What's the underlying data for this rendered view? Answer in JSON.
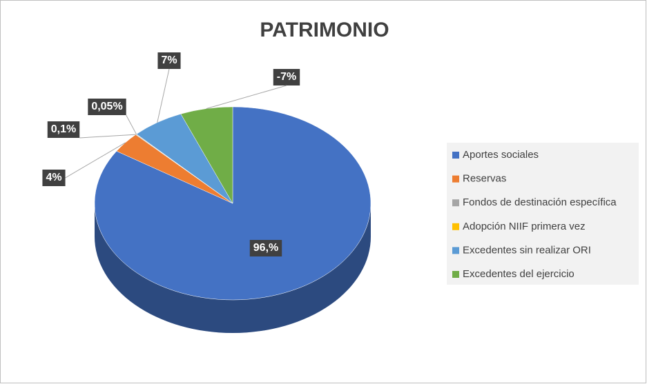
{
  "chart_data": {
    "type": "pie",
    "title": "PATRIMONIO",
    "categories": [
      "Aportes sociales",
      "Reservas",
      "Fondos de destinación específica",
      "Adopción NIIF primera vez",
      "Excedentes sin realizar ORI",
      "Excedentes del ejercicio"
    ],
    "values": [
      96,
      4,
      0.1,
      0.05,
      7,
      -7
    ],
    "value_labels": [
      "96,%",
      "4%",
      "0,1%",
      "0,05%",
      "7%",
      "-7%"
    ],
    "colors": [
      "#4472c4",
      "#ed7d31",
      "#a5a5a5",
      "#ffc000",
      "#5b9bd5",
      "#70ad47"
    ]
  }
}
